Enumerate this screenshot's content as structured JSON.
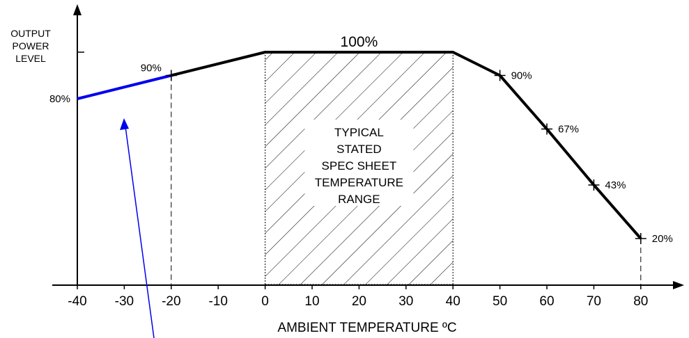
{
  "chart_data": {
    "type": "line",
    "xlabel": "AMBIENT TEMPERATURE ºC",
    "ylabel_lines": [
      "OUTPUT",
      "POWER",
      "LEVEL"
    ],
    "x_ticks": [
      -40,
      -30,
      -20,
      -10,
      0,
      10,
      20,
      30,
      40,
      50,
      60,
      70,
      80
    ],
    "xlim": [
      -40,
      80
    ],
    "ylim": [
      0,
      100
    ],
    "grid": false,
    "series": [
      {
        "color": "#0000ee",
        "points": [
          [
            -40,
            80
          ],
          [
            -20,
            90
          ]
        ]
      },
      {
        "color": "#000000",
        "points": [
          [
            -20,
            90
          ],
          [
            0,
            100
          ],
          [
            40,
            100
          ],
          [
            50,
            90
          ],
          [
            60,
            67
          ],
          [
            70,
            43
          ],
          [
            80,
            20
          ]
        ]
      }
    ],
    "markers": [
      [
        -20,
        90
      ],
      [
        50,
        90
      ],
      [
        60,
        67
      ],
      [
        70,
        43
      ],
      [
        80,
        20
      ]
    ],
    "data_labels": [
      {
        "x": -40,
        "y": 80,
        "text": "80%",
        "side": "left"
      },
      {
        "x": -20,
        "y": 90,
        "text": "90%",
        "side": "above-left"
      },
      {
        "x": 20,
        "y": 100,
        "text": "100%",
        "side": "above"
      },
      {
        "x": 50,
        "y": 90,
        "text": "90%",
        "side": "right"
      },
      {
        "x": 60,
        "y": 67,
        "text": "67%",
        "side": "right"
      },
      {
        "x": 70,
        "y": 43,
        "text": "43%",
        "side": "right"
      },
      {
        "x": 80,
        "y": 20,
        "text": "20%",
        "side": "right"
      }
    ],
    "shaded_region": {
      "x": [
        0,
        40
      ],
      "lines": [
        "TYPICAL",
        "STATED",
        "SPEC SHEET",
        "TEMPERATURE",
        "RANGE"
      ]
    },
    "dashed_drops": [
      -20,
      80
    ]
  }
}
